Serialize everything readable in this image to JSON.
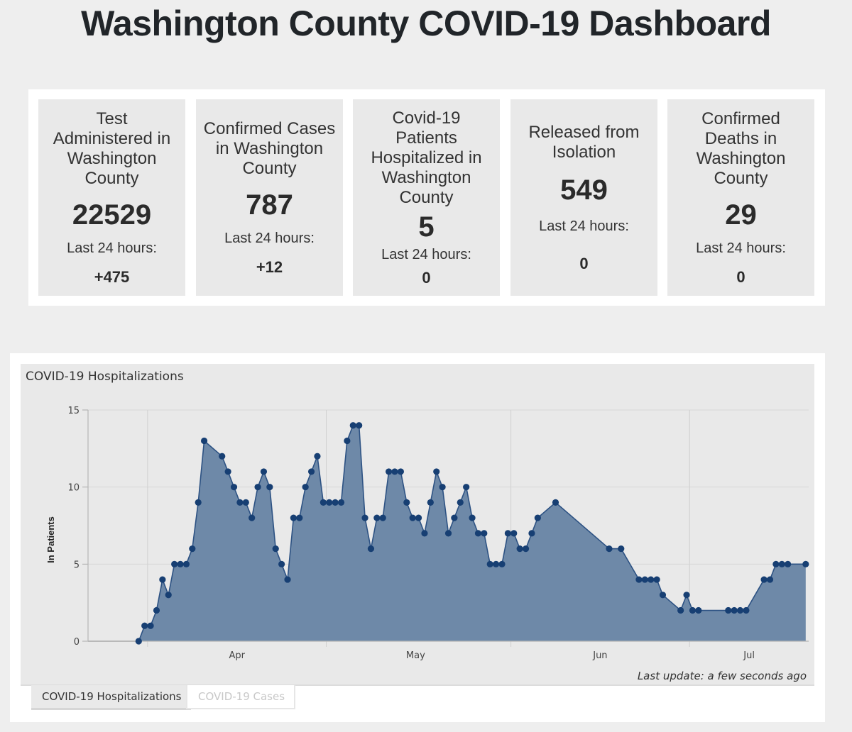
{
  "page": {
    "title": "Washington County COVID-19 Dashboard"
  },
  "stats": [
    {
      "label": "Test Administered in Washington County",
      "value": "22529",
      "sub_label": "Last 24 hours:",
      "delta": "+475"
    },
    {
      "label": "Confirmed Cases in Washington County",
      "value": "787",
      "sub_label": "Last 24 hours:",
      "delta": "+12"
    },
    {
      "label": "Covid-19 Patients Hospitalized in Washington County",
      "value": "5",
      "sub_label": "Last 24 hours:",
      "delta": "0"
    },
    {
      "label": "Released from Isolation",
      "value": "549",
      "sub_label": "Last 24 hours:",
      "delta": "0"
    },
    {
      "label": "Confirmed Deaths in Washington County",
      "value": "29",
      "sub_label": "Last 24 hours:",
      "delta": "0"
    }
  ],
  "chart_panel": {
    "last_update": "Last update: a few seconds ago",
    "tabs": [
      {
        "label": "COVID-19 Hospitalizations",
        "active": true
      },
      {
        "label": "COVID-19 Cases",
        "active": false
      }
    ]
  },
  "colors": {
    "area_fill": "#6e89a8",
    "line": "#2d5283",
    "marker": "#173f73"
  },
  "chart_data": {
    "type": "area",
    "title": "COVID-19 Hospitalizations",
    "xlabel": "",
    "ylabel": "In Patients",
    "ylim": [
      0,
      15
    ],
    "yticks": [
      0,
      5,
      10,
      15
    ],
    "x_unit": "day offset from Apr 1",
    "xlim": [
      -10,
      111
    ],
    "month_ticks": [
      {
        "label": "Apr",
        "start_day": 0,
        "end_day": 30
      },
      {
        "label": "May",
        "start_day": 30,
        "end_day": 61
      },
      {
        "label": "Jun",
        "start_day": 61,
        "end_day": 91
      },
      {
        "label": "Jul",
        "start_day": 91,
        "end_day": 111
      }
    ],
    "baseline_start_day": -10,
    "grid": true,
    "legend": "none",
    "series": [
      {
        "name": "In Patients",
        "points": [
          [
            -1.5,
            0
          ],
          [
            -0.5,
            1
          ],
          [
            0.5,
            1
          ],
          [
            1.5,
            2
          ],
          [
            2.5,
            4
          ],
          [
            3.5,
            3
          ],
          [
            4.5,
            5
          ],
          [
            5.5,
            5
          ],
          [
            6.5,
            5
          ],
          [
            7.5,
            6
          ],
          [
            8.5,
            9
          ],
          [
            9.5,
            13
          ],
          [
            12.5,
            12
          ],
          [
            13.5,
            11
          ],
          [
            14.5,
            10
          ],
          [
            15.5,
            9
          ],
          [
            16.5,
            9
          ],
          [
            17.5,
            8
          ],
          [
            18.5,
            10
          ],
          [
            19.5,
            11
          ],
          [
            20.5,
            10
          ],
          [
            21.5,
            6
          ],
          [
            22.5,
            5
          ],
          [
            23.5,
            4
          ],
          [
            24.5,
            8
          ],
          [
            25.5,
            8
          ],
          [
            26.5,
            10
          ],
          [
            27.5,
            11
          ],
          [
            28.5,
            12
          ],
          [
            29.5,
            9
          ],
          [
            30.5,
            9
          ],
          [
            31.5,
            9
          ],
          [
            32.5,
            9
          ],
          [
            33.5,
            13
          ],
          [
            34.5,
            14
          ],
          [
            35.5,
            14
          ],
          [
            36.5,
            8
          ],
          [
            37.5,
            6
          ],
          [
            38.5,
            8
          ],
          [
            39.5,
            8
          ],
          [
            40.5,
            11
          ],
          [
            41.5,
            11
          ],
          [
            42.5,
            11
          ],
          [
            43.5,
            9
          ],
          [
            44.5,
            8
          ],
          [
            45.5,
            8
          ],
          [
            46.5,
            7
          ],
          [
            47.5,
            9
          ],
          [
            48.5,
            11
          ],
          [
            49.5,
            10
          ],
          [
            50.5,
            7
          ],
          [
            51.5,
            8
          ],
          [
            52.5,
            9
          ],
          [
            53.5,
            10
          ],
          [
            54.5,
            8
          ],
          [
            55.5,
            7
          ],
          [
            56.5,
            7
          ],
          [
            57.5,
            5
          ],
          [
            58.5,
            5
          ],
          [
            59.5,
            5
          ],
          [
            60.5,
            7
          ],
          [
            61.5,
            7
          ],
          [
            62.5,
            6
          ],
          [
            63.5,
            6
          ],
          [
            64.5,
            7
          ],
          [
            65.5,
            8
          ],
          [
            68.5,
            9
          ],
          [
            77.5,
            6
          ],
          [
            79.5,
            6
          ],
          [
            82.5,
            4
          ],
          [
            83.5,
            4
          ],
          [
            84.5,
            4
          ],
          [
            85.5,
            4
          ],
          [
            86.5,
            3
          ],
          [
            89.5,
            2
          ],
          [
            90.5,
            3
          ],
          [
            91.5,
            2
          ],
          [
            92.5,
            2
          ],
          [
            97.5,
            2
          ],
          [
            98.5,
            2
          ],
          [
            99.5,
            2
          ],
          [
            100.5,
            2
          ],
          [
            103.5,
            4
          ],
          [
            104.5,
            4
          ],
          [
            105.5,
            5
          ],
          [
            106.5,
            5
          ],
          [
            107.5,
            5
          ],
          [
            110.5,
            5
          ]
        ]
      }
    ]
  }
}
